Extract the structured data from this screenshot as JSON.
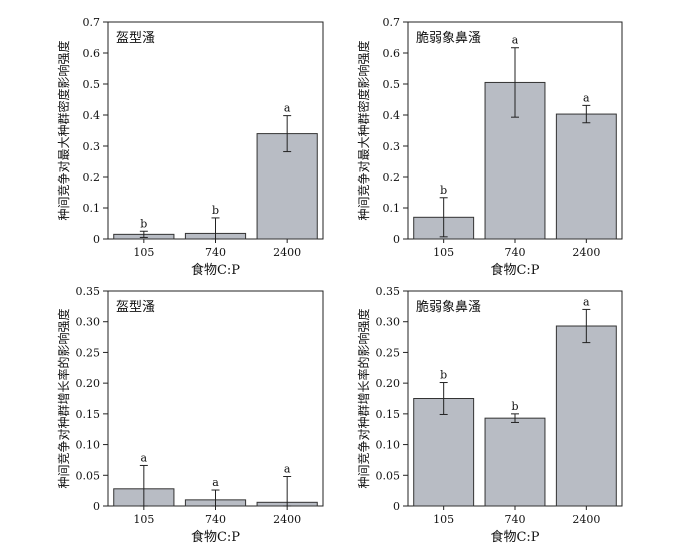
{
  "chart_data": [
    {
      "type": "bar",
      "title": "盔型溞",
      "xlabel": "食物C:P",
      "ylabel": "种间竞争对最大种群密度影响强度",
      "categories": [
        "105",
        "740",
        "2400"
      ],
      "values": [
        0.015,
        0.018,
        0.34
      ],
      "errors": [
        0.01,
        0.05,
        0.058
      ],
      "significance": [
        "b",
        "b",
        "a"
      ],
      "ylim": [
        0,
        0.7
      ],
      "yticks": [
        "0",
        "0.1",
        "0.2",
        "0.3",
        "0.4",
        "0.5",
        "0.6",
        "0.7"
      ]
    },
    {
      "type": "bar",
      "title": "脆弱象鼻溞",
      "xlabel": "食物C:P",
      "ylabel": "种间竞争对最大种群密度影响强度",
      "categories": [
        "105",
        "740",
        "2400"
      ],
      "values": [
        0.07,
        0.505,
        0.403
      ],
      "errors": [
        0.063,
        0.112,
        0.028
      ],
      "significance": [
        "b",
        "a",
        "a"
      ],
      "ylim": [
        0,
        0.7
      ],
      "yticks": [
        "0",
        "0.1",
        "0.2",
        "0.3",
        "0.4",
        "0.5",
        "0.6",
        "0.7"
      ]
    },
    {
      "type": "bar",
      "title": "盔型溞",
      "xlabel": "食物C:P",
      "ylabel": "种间竞争对种群增长率的影响强度",
      "categories": [
        "105",
        "740",
        "2400"
      ],
      "values": [
        0.028,
        0.01,
        0.006
      ],
      "errors": [
        0.038,
        0.016,
        0.042
      ],
      "significance": [
        "a",
        "a",
        "a"
      ],
      "ylim": [
        0,
        0.35
      ],
      "yticks": [
        "0",
        "0.05",
        "0.10",
        "0.15",
        "0.20",
        "0.25",
        "0.30",
        "0.35"
      ]
    },
    {
      "type": "bar",
      "title": "脆弱象鼻溞",
      "xlabel": "食物C:P",
      "ylabel": "种间竞争对种群增长率的影响强度",
      "categories": [
        "105",
        "740",
        "2400"
      ],
      "values": [
        0.175,
        0.143,
        0.293
      ],
      "errors": [
        0.026,
        0.007,
        0.027
      ],
      "significance": [
        "b",
        "b",
        "a"
      ],
      "ylim": [
        0,
        0.35
      ],
      "yticks": [
        "0",
        "0.05",
        "0.10",
        "0.15",
        "0.20",
        "0.25",
        "0.30",
        "0.35"
      ]
    }
  ],
  "style": {
    "bar_fill": "#b8bcc4",
    "bar_stroke": "#333333",
    "axis_color": "#222222"
  }
}
